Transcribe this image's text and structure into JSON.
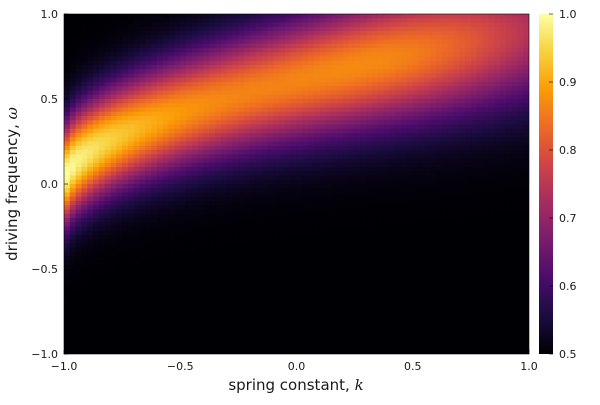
{
  "chart_data": {
    "type": "heatmap",
    "title": "",
    "xlabel": {
      "text": "spring constant, ",
      "symbol": "k"
    },
    "ylabel": {
      "text": "driving frequency, ",
      "symbol": "ω"
    },
    "xlim": [
      -1.0,
      1.0
    ],
    "ylim": [
      -1.0,
      1.0
    ],
    "xticks": [
      "−1.0",
      "−0.5",
      "0.0",
      "0.5",
      "1.0"
    ],
    "yticks": [
      "−1.0",
      "−0.5",
      "0.0",
      "0.5",
      "1.0"
    ],
    "colorbar": {
      "range": [
        0.5,
        1.0
      ],
      "ticks": [
        "0.5",
        "0.6",
        "0.7",
        "0.8",
        "0.9",
        "1.0"
      ],
      "colormap": "inferno",
      "stops": [
        "#000004",
        "#1b0c41",
        "#4a0c6b",
        "#781c6d",
        "#a52c60",
        "#cf4446",
        "#ed6925",
        "#fb9b06",
        "#f7d13d",
        "#fcffa4"
      ]
    },
    "grid": false,
    "legend": "none",
    "z_model": "peak ≈1.0 at (k=−1.0, ω=0.0); high band follows ω ≈ 0.55·(k+1)^0.5 rising toward upper right; values fall to ≈0.5 away from band",
    "grid_resolution": {
      "nx": 80,
      "ny": 80
    }
  }
}
